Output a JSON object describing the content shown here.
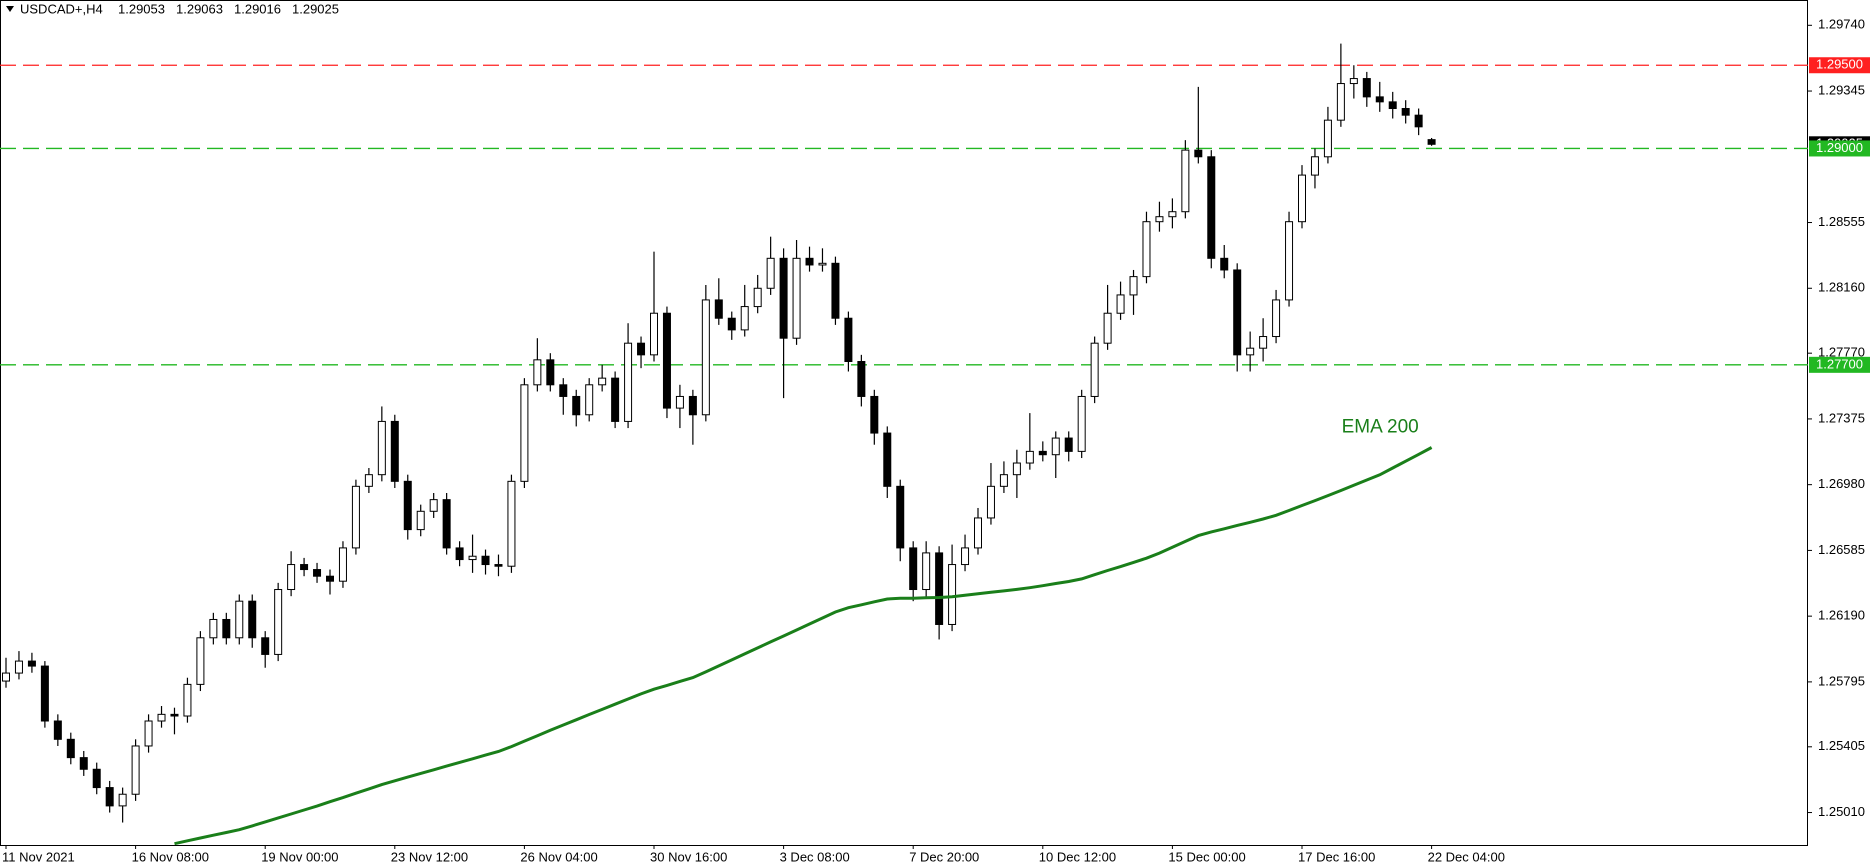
{
  "chart_data": {
    "type": "candlestick",
    "symbol": "USDCAD+,H4",
    "up_color": "#ffffff",
    "down_color": "#000000",
    "categories": [
      "11 Nov 2021",
      null,
      null,
      null,
      null,
      null,
      null,
      null,
      null,
      null,
      "16 Nov 08:00",
      null,
      null,
      null,
      null,
      null,
      null,
      null,
      null,
      null,
      "19 Nov 00:00",
      null,
      null,
      null,
      null,
      null,
      null,
      null,
      null,
      null,
      "23 Nov 12:00",
      null,
      null,
      null,
      null,
      null,
      null,
      null,
      null,
      null,
      "26 Nov 04:00",
      null,
      null,
      null,
      null,
      null,
      null,
      null,
      null,
      null,
      "30 Nov 16:00",
      null,
      null,
      null,
      null,
      null,
      null,
      null,
      null,
      null,
      "3 Dec 08:00",
      null,
      null,
      null,
      null,
      null,
      null,
      null,
      null,
      null,
      "7 Dec 20:00",
      null,
      null,
      null,
      null,
      null,
      null,
      null,
      null,
      null,
      "10 Dec 12:00",
      null,
      null,
      null,
      null,
      null,
      null,
      null,
      null,
      null,
      "15 Dec 00:00",
      null,
      null,
      null,
      null,
      null,
      null,
      null,
      null,
      null,
      "17 Dec 16:00",
      null,
      null,
      null,
      null,
      null,
      null,
      null,
      null,
      null,
      "22 Dec 04:00"
    ],
    "ohlc": [
      [
        1.258,
        1.2594,
        1.2576,
        1.25848
      ],
      [
        1.25848,
        1.2598,
        1.2581,
        1.2592
      ],
      [
        1.2592,
        1.2597,
        1.2585,
        1.2589
      ],
      [
        1.2589,
        1.2592,
        1.2552,
        1.2556
      ],
      [
        1.2556,
        1.256,
        1.2541,
        1.2545
      ],
      [
        1.2545,
        1.2549,
        1.253,
        1.2534
      ],
      [
        1.2534,
        1.2538,
        1.2523,
        1.2527
      ],
      [
        1.2527,
        1.2531,
        1.2512,
        1.2516
      ],
      [
        1.2516,
        1.252,
        1.2501,
        1.2505
      ],
      [
        1.2505,
        1.2516,
        1.2495,
        1.2512
      ],
      [
        1.2512,
        1.2545,
        1.2508,
        1.2541
      ],
      [
        1.2541,
        1.256,
        1.2537,
        1.2556
      ],
      [
        1.2556,
        1.2565,
        1.2552,
        1.256
      ],
      [
        1.256,
        1.2564,
        1.2548,
        1.2559
      ],
      [
        1.2559,
        1.2582,
        1.2555,
        1.2578
      ],
      [
        1.2578,
        1.261,
        1.2574,
        1.2606
      ],
      [
        1.2606,
        1.2621,
        1.2602,
        1.2617
      ],
      [
        1.2617,
        1.2621,
        1.2602,
        1.2606
      ],
      [
        1.2606,
        1.2632,
        1.2602,
        1.2628
      ],
      [
        1.2628,
        1.2632,
        1.26,
        1.2606
      ],
      [
        1.2606,
        1.261,
        1.2588,
        1.2596
      ],
      [
        1.2596,
        1.2639,
        1.2592,
        1.2635
      ],
      [
        1.2635,
        1.2658,
        1.2631,
        1.265
      ],
      [
        1.265,
        1.2654,
        1.2643,
        1.2647
      ],
      [
        1.2647,
        1.2651,
        1.2639,
        1.2643
      ],
      [
        1.2643,
        1.2647,
        1.2632,
        1.264
      ],
      [
        1.264,
        1.2664,
        1.2636,
        1.266
      ],
      [
        1.266,
        1.2701,
        1.2656,
        1.2697
      ],
      [
        1.2697,
        1.2708,
        1.2693,
        1.2704
      ],
      [
        1.2704,
        1.2745,
        1.27,
        1.2736
      ],
      [
        1.2736,
        1.274,
        1.2696,
        1.27
      ],
      [
        1.27,
        1.2704,
        1.2665,
        1.2671
      ],
      [
        1.2671,
        1.2686,
        1.2667,
        1.2682
      ],
      [
        1.2682,
        1.2693,
        1.2678,
        1.2689
      ],
      [
        1.2689,
        1.2693,
        1.2656,
        1.266
      ],
      [
        1.266,
        1.2664,
        1.2649,
        1.2653
      ],
      [
        1.2653,
        1.2668,
        1.2645,
        1.2655
      ],
      [
        1.2655,
        1.2659,
        1.2644,
        1.265
      ],
      [
        1.265,
        1.2656,
        1.2643,
        1.2649
      ],
      [
        1.2649,
        1.2704,
        1.2645,
        1.27
      ],
      [
        1.27,
        1.2762,
        1.2696,
        1.2758
      ],
      [
        1.2758,
        1.2786,
        1.2754,
        1.2773
      ],
      [
        1.2773,
        1.2777,
        1.2754,
        1.2758
      ],
      [
        1.2758,
        1.2762,
        1.274,
        1.2751
      ],
      [
        1.2751,
        1.2755,
        1.2733,
        1.274
      ],
      [
        1.274,
        1.2762,
        1.2736,
        1.2758
      ],
      [
        1.2758,
        1.277,
        1.2754,
        1.2762
      ],
      [
        1.2762,
        1.2766,
        1.2732,
        1.2736
      ],
      [
        1.2736,
        1.2795,
        1.2732,
        1.2783
      ],
      [
        1.2783,
        1.2787,
        1.2768,
        1.2776
      ],
      [
        1.2776,
        1.2838,
        1.2772,
        1.2801
      ],
      [
        1.2801,
        1.2805,
        1.2738,
        1.2744
      ],
      [
        1.2744,
        1.2758,
        1.2732,
        1.2751
      ],
      [
        1.2751,
        1.2755,
        1.2722,
        1.274
      ],
      [
        1.274,
        1.2818,
        1.2736,
        1.2809
      ],
      [
        1.2809,
        1.2822,
        1.2794,
        1.2798
      ],
      [
        1.2798,
        1.2802,
        1.2785,
        1.2791
      ],
      [
        1.2791,
        1.2818,
        1.2787,
        1.2805
      ],
      [
        1.2805,
        1.2824,
        1.2801,
        1.2816
      ],
      [
        1.2816,
        1.2847,
        1.2812,
        1.2834
      ],
      [
        1.2834,
        1.284,
        1.275,
        1.2786
      ],
      [
        1.2786,
        1.2845,
        1.2782,
        1.2834
      ],
      [
        1.2834,
        1.2841,
        1.2826,
        1.283
      ],
      [
        1.283,
        1.284,
        1.2826,
        1.2831
      ],
      [
        1.2831,
        1.2835,
        1.2794,
        1.2798
      ],
      [
        1.2798,
        1.2802,
        1.2766,
        1.2772
      ],
      [
        1.2772,
        1.2776,
        1.2745,
        1.2751
      ],
      [
        1.2751,
        1.2755,
        1.2722,
        1.2729
      ],
      [
        1.2729,
        1.2733,
        1.269,
        1.2697
      ],
      [
        1.2697,
        1.2701,
        1.2652,
        1.266
      ],
      [
        1.266,
        1.2664,
        1.2628,
        1.2635
      ],
      [
        1.2635,
        1.2664,
        1.263,
        1.2657
      ],
      [
        1.2657,
        1.2661,
        1.2605,
        1.2614
      ],
      [
        1.2614,
        1.2662,
        1.261,
        1.265
      ],
      [
        1.265,
        1.2668,
        1.2646,
        1.266
      ],
      [
        1.266,
        1.2684,
        1.2656,
        1.2678
      ],
      [
        1.2678,
        1.2711,
        1.2674,
        1.2697
      ],
      [
        1.2697,
        1.2712,
        1.2693,
        1.2704
      ],
      [
        1.2704,
        1.2719,
        1.269,
        1.2711
      ],
      [
        1.2711,
        1.2741,
        1.2707,
        1.2718
      ],
      [
        1.2718,
        1.2724,
        1.2712,
        1.2716
      ],
      [
        1.2716,
        1.273,
        1.2702,
        1.2726
      ],
      [
        1.2726,
        1.273,
        1.2712,
        1.2718
      ],
      [
        1.2718,
        1.2755,
        1.2714,
        1.2751
      ],
      [
        1.2751,
        1.2787,
        1.2747,
        1.2783
      ],
      [
        1.2783,
        1.2818,
        1.2779,
        1.2801
      ],
      [
        1.2801,
        1.282,
        1.2797,
        1.2812
      ],
      [
        1.2812,
        1.2827,
        1.28,
        1.2823
      ],
      [
        1.2823,
        1.2862,
        1.2819,
        1.2856
      ],
      [
        1.2856,
        1.2868,
        1.285,
        1.2859
      ],
      [
        1.2859,
        1.287,
        1.2852,
        1.2862
      ],
      [
        1.2862,
        1.2905,
        1.2858,
        1.2899
      ],
      [
        1.2899,
        1.2937,
        1.2891,
        1.2895
      ],
      [
        1.2895,
        1.2899,
        1.2828,
        1.2834
      ],
      [
        1.2834,
        1.2842,
        1.2822,
        1.2827
      ],
      [
        1.2827,
        1.2831,
        1.2766,
        1.2776
      ],
      [
        1.2776,
        1.279,
        1.2766,
        1.278
      ],
      [
        1.278,
        1.2798,
        1.2772,
        1.2787
      ],
      [
        1.2787,
        1.2815,
        1.2783,
        1.2809
      ],
      [
        1.2809,
        1.2862,
        1.2805,
        1.2856
      ],
      [
        1.2856,
        1.289,
        1.2852,
        1.2884
      ],
      [
        1.2884,
        1.29,
        1.2876,
        1.2895
      ],
      [
        1.2895,
        1.2925,
        1.2891,
        1.2917
      ],
      [
        1.2917,
        1.2963,
        1.2913,
        1.2939
      ],
      [
        1.2939,
        1.295,
        1.293,
        1.2942
      ],
      [
        1.2942,
        1.2946,
        1.2925,
        1.2931
      ],
      [
        1.2931,
        1.294,
        1.2922,
        1.2928
      ],
      [
        1.2928,
        1.2934,
        1.2918,
        1.2924
      ],
      [
        1.2924,
        1.2929,
        1.2915,
        1.292
      ],
      [
        1.292,
        1.2924,
        1.2908,
        1.2913
      ],
      [
        1.29053,
        1.29063,
        1.29016,
        1.29025
      ]
    ],
    "ema": {
      "name": "EMA 200",
      "color": "#1a7f1a",
      "values": [
        null,
        null,
        null,
        null,
        null,
        null,
        null,
        null,
        null,
        null,
        null,
        null,
        null,
        1.24823,
        1.2484,
        1.24857,
        1.24874,
        1.2489,
        1.24907,
        1.2493,
        1.24954,
        1.24978,
        1.25001,
        1.25025,
        1.25049,
        1.25075,
        1.251,
        1.25126,
        1.25152,
        1.25178,
        1.25201,
        1.25223,
        1.25245,
        1.25267,
        1.25289,
        1.25311,
        1.25333,
        1.25355,
        1.25377,
        1.25406,
        1.25439,
        1.25472,
        1.25505,
        1.25536,
        1.25567,
        1.25599,
        1.2563,
        1.25661,
        1.25692,
        1.25723,
        1.25751,
        1.25774,
        1.25798,
        1.25821,
        1.25855,
        1.25891,
        1.25927,
        1.25963,
        1.25999,
        1.26035,
        1.26071,
        1.26107,
        1.26143,
        1.26179,
        1.26215,
        1.26241,
        1.26258,
        1.26276,
        1.26293,
        1.26297,
        1.26298,
        1.263,
        1.26302,
        1.26306,
        1.26315,
        1.26324,
        1.26333,
        1.26342,
        1.26351,
        1.26361,
        1.26373,
        1.26386,
        1.26398,
        1.26414,
        1.26439,
        1.26464,
        1.26488,
        1.26513,
        1.26538,
        1.26569,
        1.26604,
        1.26639,
        1.26674,
        1.26696,
        1.26715,
        1.26735,
        1.26754,
        1.26774,
        1.26796,
        1.26825,
        1.26855,
        1.26884,
        1.26914,
        1.26945,
        1.26977,
        1.27008,
        1.27039,
        1.2708,
        1.27121,
        1.27162,
        1.27203
      ]
    },
    "ylim": [
      1.24815,
      1.29892
    ],
    "yticks": [
      {
        "value": 1.2974,
        "label": "1.29740"
      },
      {
        "value": 1.29345,
        "label": "1.29345"
      },
      {
        "value": 1.28555,
        "label": "1.28555"
      },
      {
        "value": 1.2816,
        "label": "1.28160"
      },
      {
        "value": 1.2777,
        "label": "1.27770"
      },
      {
        "value": 1.27375,
        "label": "1.27375"
      },
      {
        "value": 1.2698,
        "label": "1.26980"
      },
      {
        "value": 1.26585,
        "label": "1.26585"
      },
      {
        "value": 1.2619,
        "label": "1.26190"
      },
      {
        "value": 1.25795,
        "label": "1.25795"
      },
      {
        "value": 1.25405,
        "label": "1.25405"
      },
      {
        "value": 1.2501,
        "label": "1.25010"
      }
    ],
    "levels": [
      {
        "value": 1.295,
        "label": "1.29500",
        "color": "#ff2020"
      },
      {
        "value": 1.29,
        "label": "1.29000",
        "color": "#22b822"
      },
      {
        "value": 1.277,
        "label": "1.27700",
        "color": "#22b822"
      }
    ]
  }
}
